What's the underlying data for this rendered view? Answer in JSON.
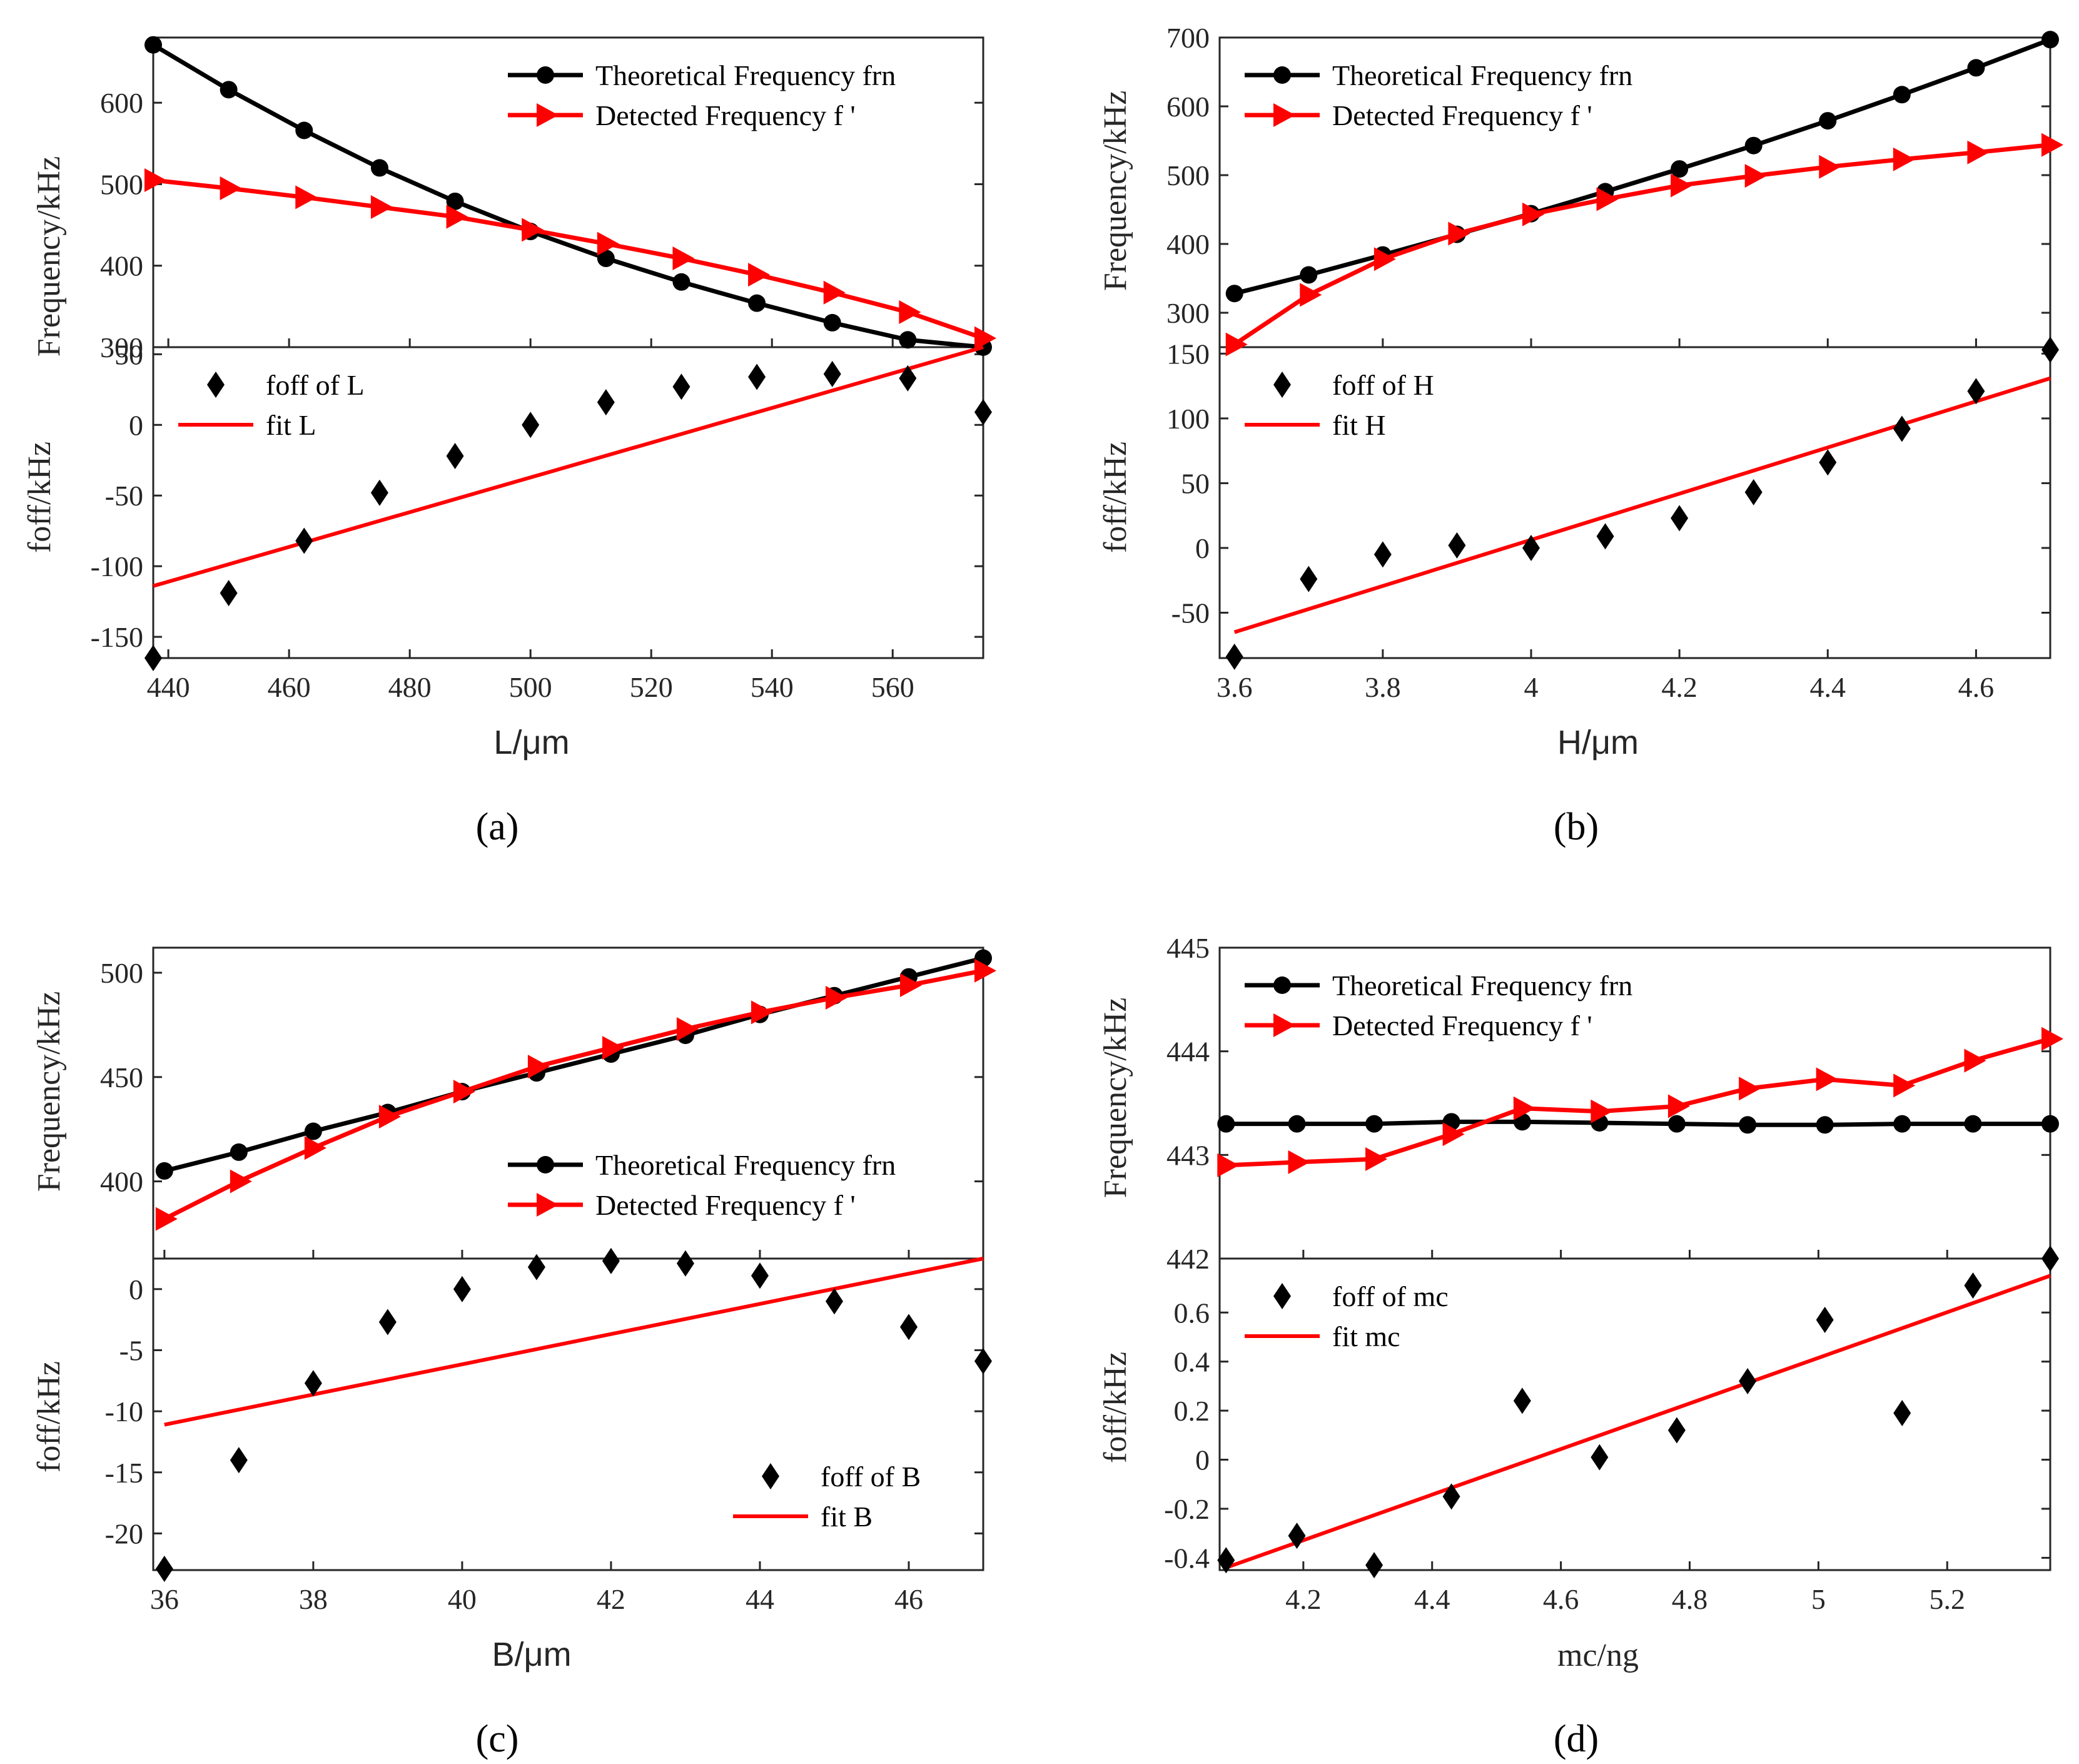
{
  "colors": {
    "theory": "#000000",
    "detected": "#ff0000",
    "fit": "#ff0000",
    "offset": "#000000"
  },
  "chart_data": [
    {
      "type": "line",
      "panel_label": "(a)",
      "x": [
        437.5,
        450,
        462.5,
        475,
        487.5,
        500,
        512.5,
        525,
        537.5,
        550,
        562.5,
        575
      ],
      "xlabel": "L/μm",
      "xlim": [
        437.5,
        575
      ],
      "xticks": [
        440,
        460,
        480,
        500,
        520,
        540,
        560
      ],
      "xtick_labels": [
        "440",
        "460",
        "480",
        "500",
        "520",
        "540",
        "560"
      ],
      "top": {
        "ylabel": "Frequency/kHz",
        "ylim": [
          300,
          680
        ],
        "yticks": [
          300,
          400,
          500,
          600
        ],
        "ytick_labels": [
          "300",
          "400",
          "500",
          "600"
        ],
        "legend_position": "top-right",
        "series": [
          {
            "name": "Theoretical Frequency frn",
            "marker": "circle",
            "values": [
              671,
              616,
              566,
              520,
              479,
              442,
              409,
              380,
              354,
              330,
              309,
              300
            ]
          },
          {
            "name": "Detected Frequency f '",
            "marker": "triangle-right",
            "values": [
              505,
              495,
              484,
              472,
              460,
              444,
              427,
              409,
              389,
              367,
              343,
              311
            ]
          }
        ]
      },
      "bottom": {
        "ylabel": "foff/kHz",
        "ylim": [
          -165,
          55
        ],
        "yticks": [
          -150,
          -100,
          -50,
          0,
          50
        ],
        "ytick_labels": [
          "-150",
          "-100",
          "-50",
          "0",
          "50"
        ],
        "legend_position": "top-left",
        "points": {
          "name": "foff of L",
          "marker": "diamond",
          "values": [
            -165,
            -119,
            -82,
            -48,
            -22,
            0,
            16,
            27,
            34,
            36,
            33,
            9
          ]
        },
        "fit": {
          "name": "fit L",
          "y_start": -114,
          "y_end": 55
        }
      }
    },
    {
      "type": "line",
      "panel_label": "(b)",
      "x": [
        3.6,
        3.7,
        3.8,
        3.9,
        4.0,
        4.1,
        4.2,
        4.3,
        4.4,
        4.5,
        4.6,
        4.7
      ],
      "xlabel": "H/μm",
      "xlim": [
        3.58,
        4.7
      ],
      "xticks": [
        3.6,
        3.8,
        4.0,
        4.2,
        4.4,
        4.6
      ],
      "xtick_labels": [
        "3.6",
        "3.8",
        "4",
        "4.2",
        "4.4",
        "4.6"
      ],
      "top": {
        "ylabel": "Frequency/kHz",
        "ylim": [
          250,
          700
        ],
        "yticks": [
          300,
          400,
          500,
          600,
          700
        ],
        "ytick_labels": [
          "300",
          "400",
          "500",
          "600",
          "700"
        ],
        "legend_position": "top-left",
        "series": [
          {
            "name": "Theoretical Frequency frn",
            "marker": "circle",
            "values": [
              328,
              355,
              384,
              414,
              444,
              476,
              509,
              543,
              579,
              617,
              656,
              697
            ]
          },
          {
            "name": "Detected Frequency f '",
            "marker": "triangle-right",
            "values": [
              254,
              326,
              378,
              415,
              443,
              465,
              485,
              499,
              512,
              523,
              533,
              544
            ]
          }
        ]
      },
      "bottom": {
        "ylabel": "foff/kHz",
        "ylim": [
          -85,
          155
        ],
        "yticks": [
          -50,
          0,
          50,
          100,
          150
        ],
        "ytick_labels": [
          "-50",
          "0",
          "50",
          "100",
          "150"
        ],
        "legend_position": "top-left",
        "points": {
          "name": "foff of H",
          "marker": "diamond",
          "values": [
            -84,
            -24,
            -5,
            2,
            0,
            9,
            23,
            43,
            66,
            92,
            121,
            153
          ]
        },
        "fit": {
          "name": "fit H",
          "y_start": -65,
          "y_end": 131
        }
      }
    },
    {
      "type": "line",
      "panel_label": "(c)",
      "x": [
        36,
        37,
        38,
        39,
        40,
        41,
        42,
        43,
        44,
        45,
        46,
        47
      ],
      "xlabel": "B/μm",
      "xlim": [
        35.85,
        47
      ],
      "xticks": [
        36,
        38,
        40,
        42,
        44,
        46
      ],
      "xtick_labels": [
        "36",
        "38",
        "40",
        "42",
        "44",
        "46"
      ],
      "top": {
        "ylabel": "Frequency/kHz",
        "ylim": [
          363,
          512
        ],
        "yticks": [
          400,
          450,
          500
        ],
        "ytick_labels": [
          "400",
          "450",
          "500"
        ],
        "legend_position": "bottom-right",
        "series": [
          {
            "name": "Theoretical Frequency frn",
            "marker": "circle",
            "values": [
              405,
              414,
              424,
              433,
              443,
              452,
              461,
              470,
              480,
              489,
              498,
              507
            ]
          },
          {
            "name": "Detected Frequency f '",
            "marker": "triangle-right",
            "values": [
              382,
              400,
              416,
              431,
              443,
              455,
              464,
              473,
              481,
              488,
              494,
              501
            ]
          }
        ]
      },
      "bottom": {
        "ylabel": "foff/kHz",
        "ylim": [
          -23,
          2.5
        ],
        "yticks": [
          -20,
          -15,
          -10,
          -5,
          0
        ],
        "ytick_labels": [
          "-20",
          "-15",
          "-10",
          "-5",
          "0"
        ],
        "legend_position": "bottom-right",
        "points": {
          "name": "foff of B",
          "marker": "diamond",
          "values": [
            -22.9,
            -14,
            -7.7,
            -2.7,
            0,
            1.8,
            2.3,
            2.1,
            1.1,
            -1,
            -3.1,
            -5.9
          ]
        },
        "fit": {
          "name": "fit B",
          "y_start": -11.1,
          "y_end": 2.5
        }
      }
    },
    {
      "type": "line",
      "panel_label": "(d)",
      "x": [
        4.08,
        4.19,
        4.31,
        4.43,
        4.54,
        4.66,
        4.78,
        4.89,
        5.01,
        5.13,
        5.24,
        5.36
      ],
      "xlabel": "mc/ng",
      "xlim": [
        4.07,
        5.36
      ],
      "xticks": [
        4.2,
        4.4,
        4.6,
        4.8,
        5.0,
        5.2
      ],
      "xtick_labels": [
        "4.2",
        "4.4",
        "4.6",
        "4.8",
        "5",
        "5.2"
      ],
      "top": {
        "ylabel": "Frequency/kHz",
        "ylim": [
          442,
          445
        ],
        "yticks": [
          442,
          443,
          444,
          445
        ],
        "ytick_labels": [
          "442",
          "443",
          "444",
          "445"
        ],
        "legend_position": "top-left",
        "series": [
          {
            "name": "Theoretical Frequency frn",
            "marker": "circle",
            "values": [
              443.3,
              443.3,
              443.3,
              443.32,
              443.32,
              443.31,
              443.3,
              443.29,
              443.29,
              443.3,
              443.3,
              443.3
            ]
          },
          {
            "name": "Detected Frequency f '",
            "marker": "triangle-right",
            "values": [
              442.9,
              442.93,
              442.96,
              443.2,
              443.45,
              443.42,
              443.47,
              443.64,
              443.73,
              443.67,
              443.91,
              444.12
            ]
          }
        ]
      },
      "bottom": {
        "ylabel": "foff/kHz",
        "ylim": [
          -0.45,
          0.82
        ],
        "yticks": [
          -0.4,
          -0.2,
          0,
          0.2,
          0.4,
          0.6
        ],
        "ytick_labels": [
          "-0.4",
          "-0.2",
          "0",
          "0.2",
          "0.4",
          "0.6"
        ],
        "legend_position": "top-left",
        "points": {
          "name": "foff of mc",
          "marker": "diamond",
          "values": [
            -0.41,
            -0.31,
            -0.43,
            -0.15,
            0.24,
            0.01,
            0.12,
            0.32,
            0.57,
            0.19,
            0.71,
            0.82
          ]
        },
        "fit": {
          "name": "fit mc",
          "y_start": -0.44,
          "y_end": 0.75
        }
      }
    }
  ]
}
